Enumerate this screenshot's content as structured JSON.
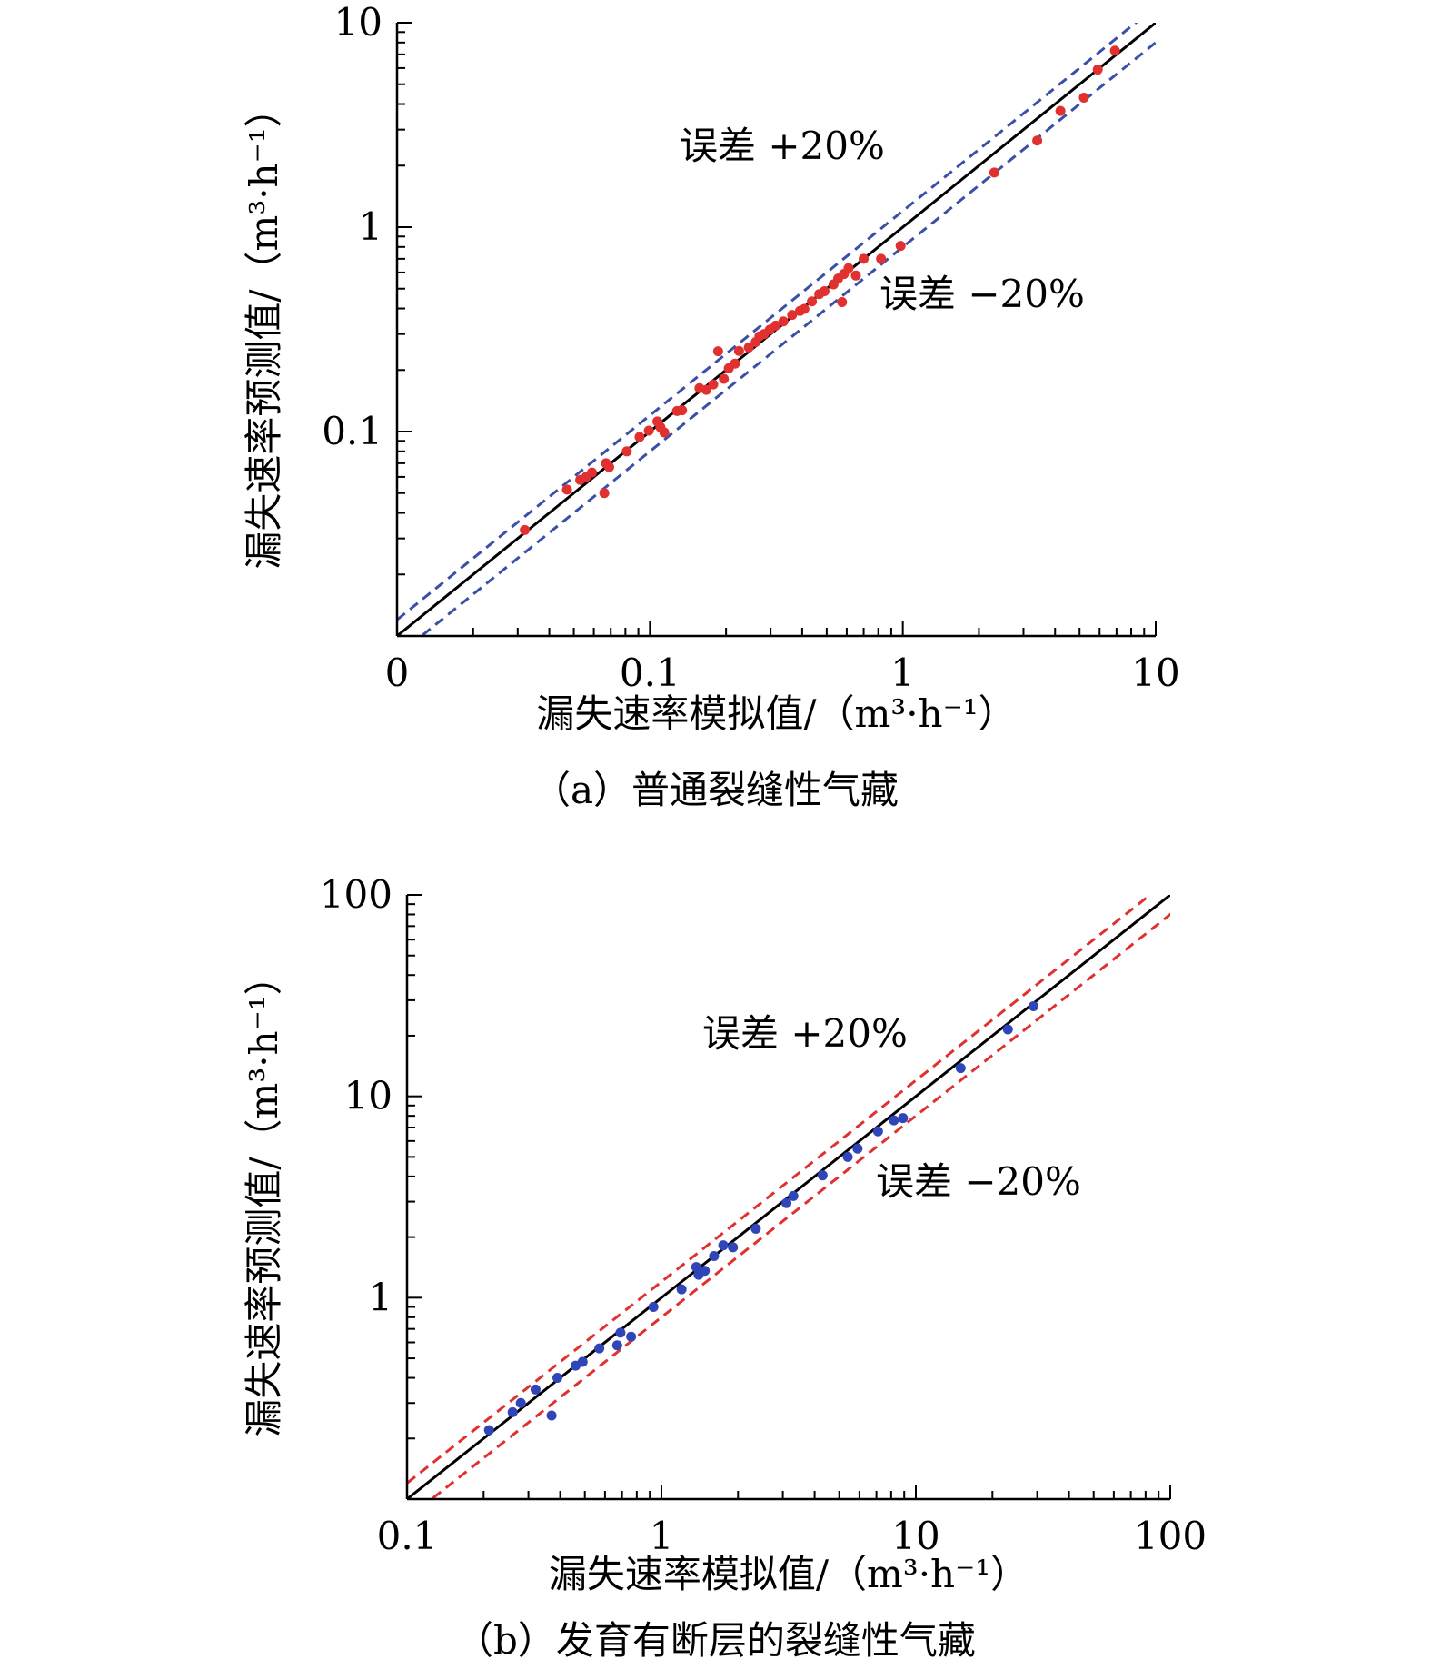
{
  "charts": [
    {
      "caption": "（a）普通裂缝性气藏",
      "chart_data": {
        "type": "scatter",
        "xlabel": "漏失速率模拟值/（m³·h⁻¹）",
        "ylabel": "漏失速率预测值/（m³·h⁻¹）",
        "x_scale": "log",
        "y_scale": "log",
        "xlim": [
          0.01,
          10
        ],
        "ylim": [
          0.01,
          10
        ],
        "x_ticks": [
          "0",
          "0.1",
          "1",
          "10"
        ],
        "y_ticks": [
          "0.1",
          "1",
          "10"
        ],
        "annotations": {
          "plus": "误差 +20%",
          "minus": "误差 −20%"
        },
        "colors": {
          "points": "#e03030",
          "bands": "#3a4fa8",
          "line": "#000000"
        },
        "series": [
          {
            "points": [
              [
                0.032,
                0.033
              ],
              [
                0.047,
                0.052
              ],
              [
                0.053,
                0.058
              ],
              [
                0.056,
                0.06
              ],
              [
                0.059,
                0.063
              ],
              [
                0.066,
                0.05
              ],
              [
                0.067,
                0.07
              ],
              [
                0.069,
                0.067
              ],
              [
                0.081,
                0.08
              ],
              [
                0.091,
                0.094
              ],
              [
                0.099,
                0.101
              ],
              [
                0.107,
                0.112
              ],
              [
                0.11,
                0.105
              ],
              [
                0.114,
                0.099
              ],
              [
                0.128,
                0.126
              ],
              [
                0.134,
                0.127
              ],
              [
                0.157,
                0.163
              ],
              [
                0.167,
                0.16
              ],
              [
                0.178,
                0.17
              ],
              [
                0.186,
                0.247
              ],
              [
                0.196,
                0.181
              ],
              [
                0.205,
                0.204
              ],
              [
                0.217,
                0.215
              ],
              [
                0.225,
                0.248
              ],
              [
                0.246,
                0.258
              ],
              [
                0.262,
                0.274
              ],
              [
                0.271,
                0.292
              ],
              [
                0.283,
                0.3
              ],
              [
                0.298,
                0.315
              ],
              [
                0.314,
                0.33
              ],
              [
                0.337,
                0.346
              ],
              [
                0.365,
                0.372
              ],
              [
                0.392,
                0.389
              ],
              [
                0.408,
                0.398
              ],
              [
                0.437,
                0.433
              ],
              [
                0.467,
                0.47
              ],
              [
                0.49,
                0.486
              ],
              [
                0.532,
                0.525
              ],
              [
                0.555,
                0.56
              ],
              [
                0.585,
                0.59
              ],
              [
                0.575,
                0.43
              ],
              [
                0.61,
                0.63
              ],
              [
                0.652,
                0.58
              ],
              [
                0.7,
                0.7
              ],
              [
                0.82,
                0.7
              ],
              [
                0.98,
                0.81
              ],
              [
                2.3,
                1.85
              ],
              [
                3.4,
                2.65
              ],
              [
                4.2,
                3.7
              ],
              [
                5.2,
                4.3
              ],
              [
                5.9,
                5.9
              ],
              [
                6.9,
                7.3
              ]
            ]
          }
        ]
      }
    },
    {
      "caption": "（b）发育有断层的裂缝性气藏",
      "chart_data": {
        "type": "scatter",
        "xlabel": "漏失速率模拟值/（m³·h⁻¹）",
        "ylabel": "漏失速率预测值/（m³·h⁻¹）",
        "x_scale": "log",
        "y_scale": "log",
        "xlim": [
          0.1,
          100
        ],
        "ylim": [
          0.1,
          100
        ],
        "x_ticks": [
          "0.1",
          "1",
          "10",
          "100"
        ],
        "y_ticks": [
          "1",
          "10",
          "100"
        ],
        "annotations": {
          "plus": "误差 +20%",
          "minus": "误差 −20%"
        },
        "colors": {
          "points": "#2f45b8",
          "bands": "#e03030",
          "line": "#000000"
        },
        "series": [
          {
            "points": [
              [
                0.21,
                0.22
              ],
              [
                0.26,
                0.27
              ],
              [
                0.28,
                0.3
              ],
              [
                0.32,
                0.35
              ],
              [
                0.37,
                0.26
              ],
              [
                0.39,
                0.4
              ],
              [
                0.46,
                0.46
              ],
              [
                0.49,
                0.48
              ],
              [
                0.57,
                0.56
              ],
              [
                0.67,
                0.58
              ],
              [
                0.69,
                0.67
              ],
              [
                0.76,
                0.64
              ],
              [
                0.93,
                0.9
              ],
              [
                1.2,
                1.1
              ],
              [
                1.37,
                1.42
              ],
              [
                1.4,
                1.3
              ],
              [
                1.48,
                1.36
              ],
              [
                1.61,
                1.61
              ],
              [
                1.75,
                1.82
              ],
              [
                1.91,
                1.78
              ],
              [
                2.35,
                2.2
              ],
              [
                3.1,
                2.95
              ],
              [
                3.3,
                3.2
              ],
              [
                4.3,
                4.05
              ],
              [
                5.4,
                5.0
              ],
              [
                5.9,
                5.5
              ],
              [
                7.1,
                6.7
              ],
              [
                8.2,
                7.6
              ],
              [
                8.9,
                7.8
              ],
              [
                15.0,
                13.8
              ],
              [
                23.0,
                21.5
              ],
              [
                29.0,
                28.0
              ]
            ]
          }
        ]
      }
    }
  ]
}
